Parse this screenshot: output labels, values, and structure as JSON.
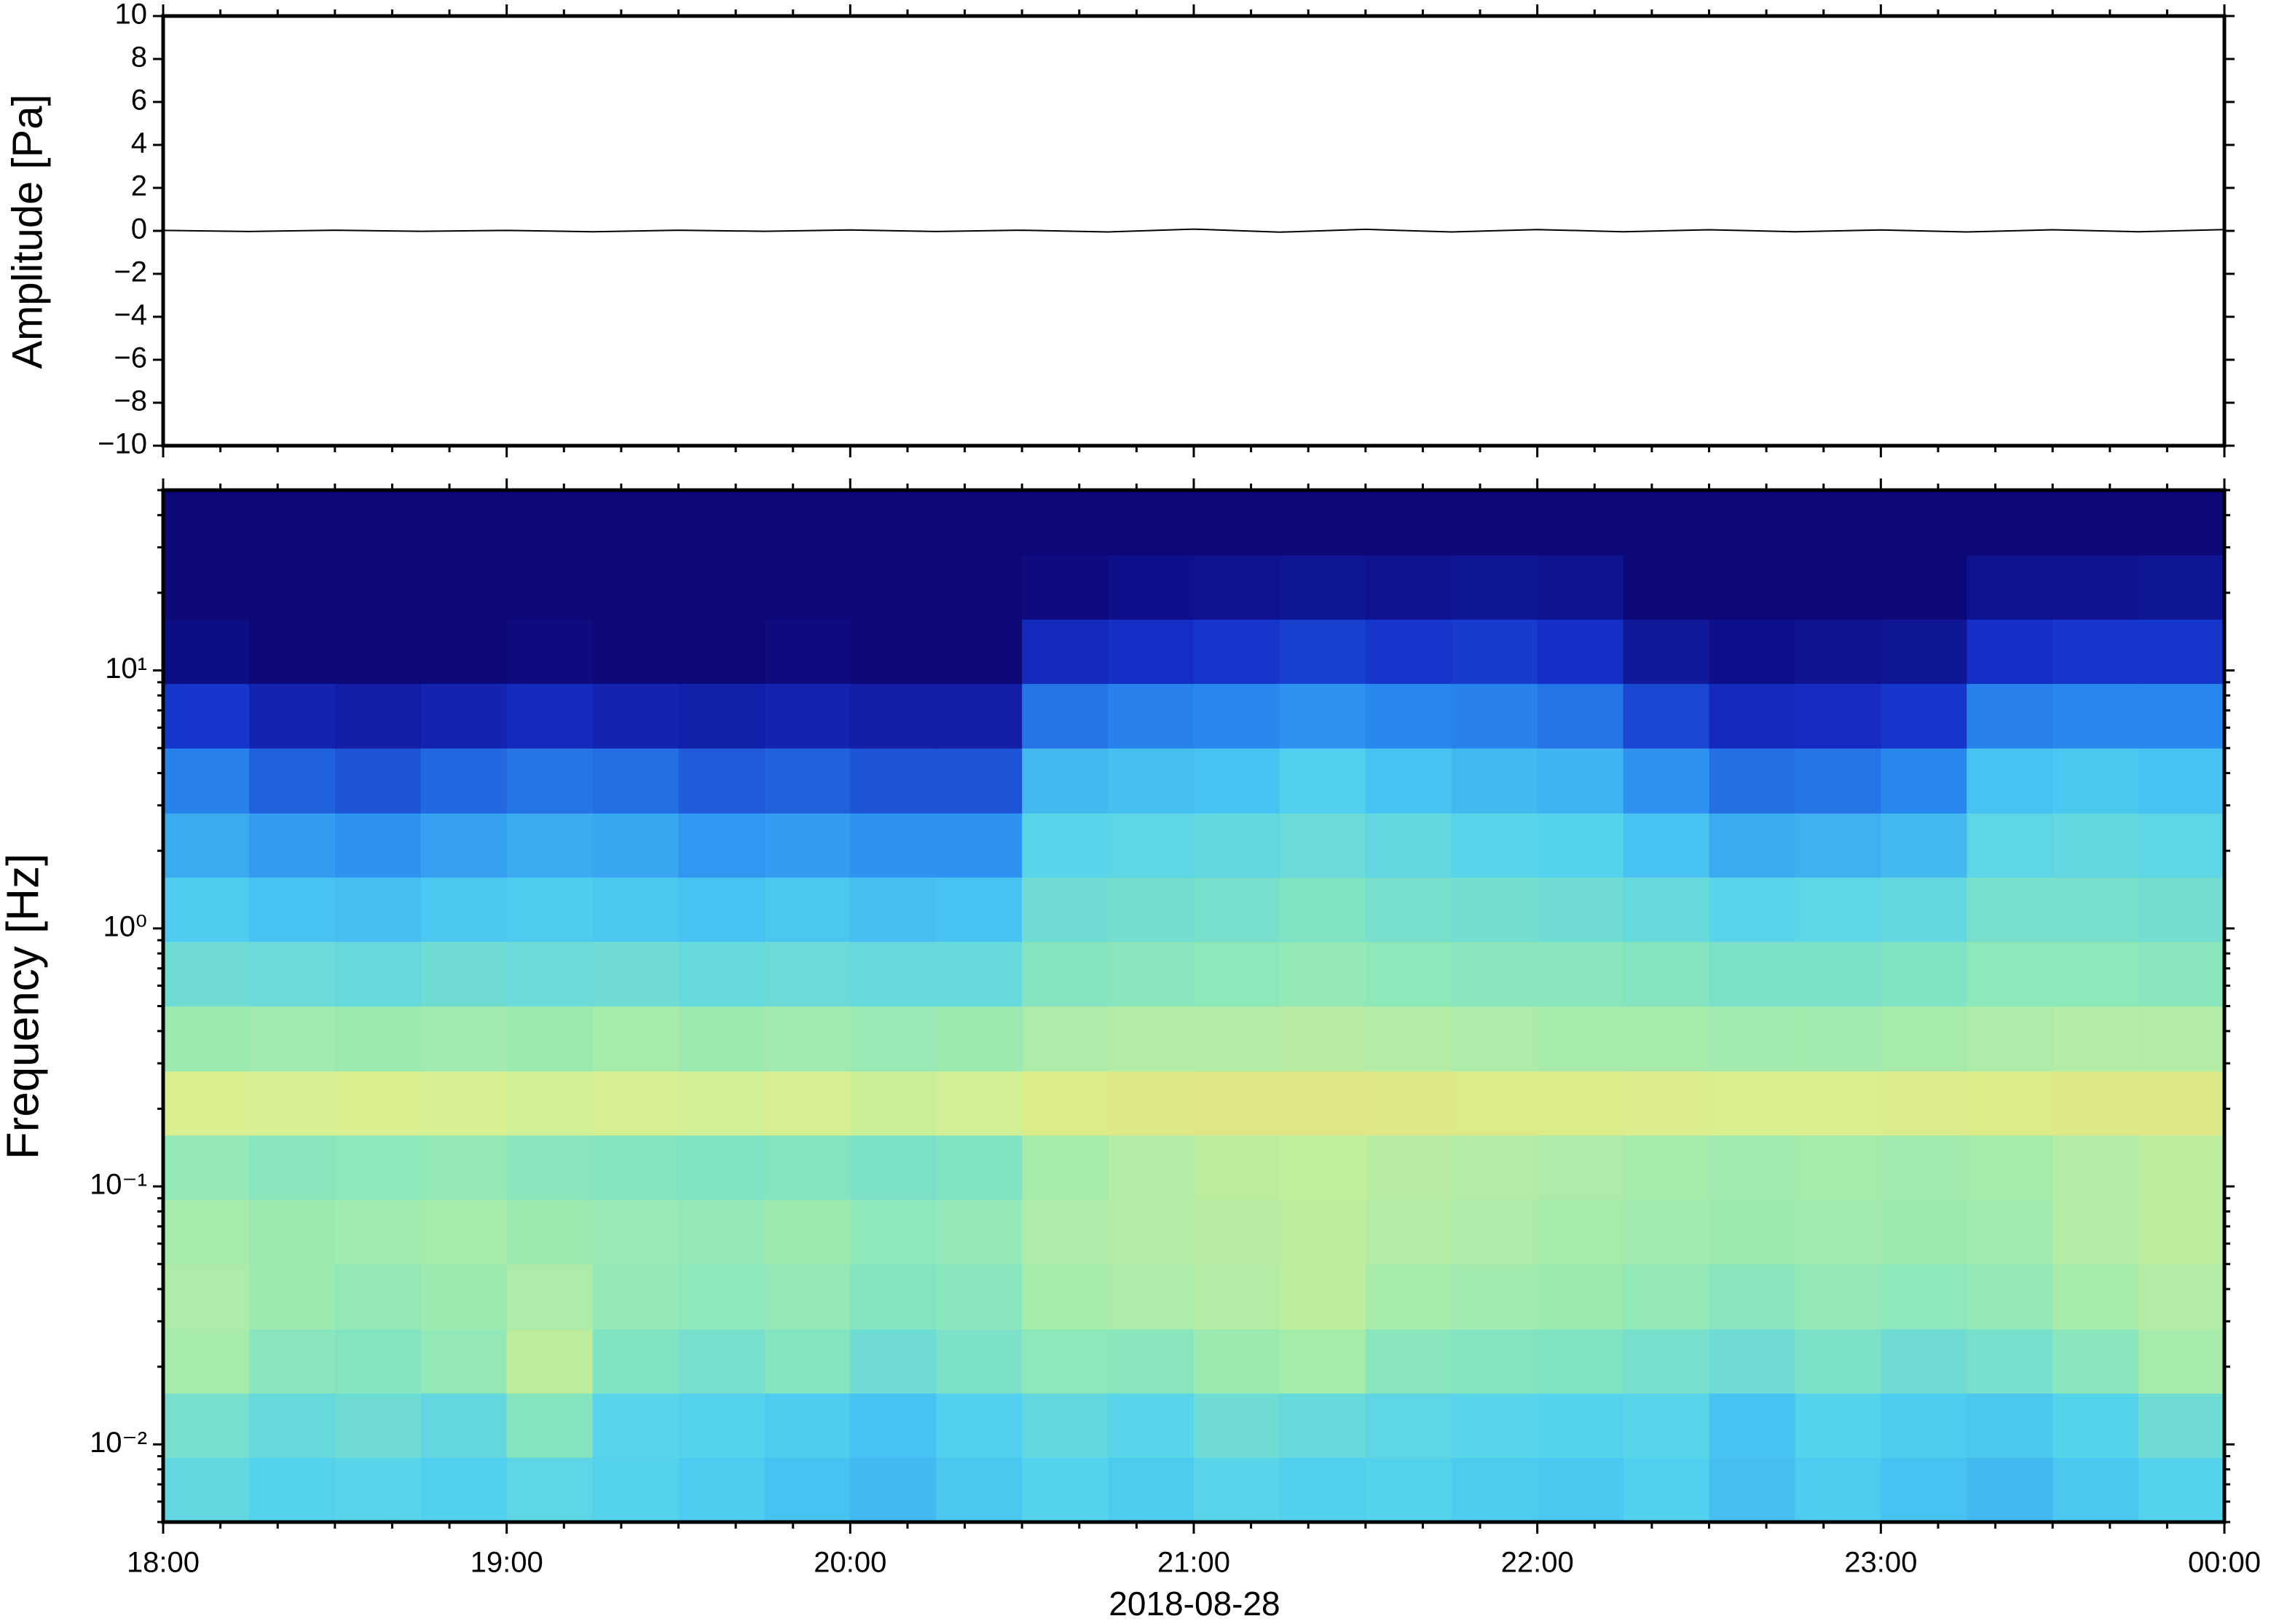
{
  "chart_data": [
    {
      "type": "line",
      "ylabel": "Amplitude [Pa]",
      "color": "#000000",
      "xlim": [
        18,
        24
      ],
      "xticks": [
        18,
        19,
        20,
        21,
        22,
        23,
        24
      ],
      "ylim": [
        -10,
        10
      ],
      "yticks": [
        {
          "value": -10,
          "label": "−10"
        },
        {
          "value": -8,
          "label": "−8"
        },
        {
          "value": -6,
          "label": "−6"
        },
        {
          "value": -4,
          "label": "−4"
        },
        {
          "value": -2,
          "label": "−2"
        },
        0,
        2,
        4,
        6,
        8,
        10
      ],
      "x": [
        18,
        18.25,
        18.5,
        18.75,
        19,
        19.25,
        19.5,
        19.75,
        20,
        20.25,
        20.5,
        20.75,
        21,
        21.25,
        21.5,
        21.75,
        22,
        22.25,
        22.5,
        22.75,
        23,
        23.25,
        23.5,
        23.75,
        24
      ],
      "values": [
        0.02,
        -0.03,
        0.03,
        -0.02,
        0.02,
        -0.04,
        0.03,
        -0.02,
        0.04,
        -0.03,
        0.03,
        -0.05,
        0.08,
        -0.06,
        0.07,
        -0.05,
        0.06,
        -0.04,
        0.05,
        -0.04,
        0.04,
        -0.05,
        0.05,
        -0.04,
        0.06
      ]
    },
    {
      "type": "heatmap",
      "ylabel": "Frequency [Hz]",
      "xlabel": "2018-08-28",
      "ylog": true,
      "xlim": [
        18,
        24
      ],
      "xticks": [
        {
          "value": 18,
          "label": "18:00"
        },
        {
          "value": 19,
          "label": "19:00"
        },
        {
          "value": 20,
          "label": "20:00"
        },
        {
          "value": 21,
          "label": "21:00"
        },
        {
          "value": 22,
          "label": "22:00"
        },
        {
          "value": 23,
          "label": "23:00"
        },
        {
          "value": 24,
          "label": "00:00"
        }
      ],
      "ylim": [
        0.005,
        50
      ],
      "yticks": [
        {
          "value": 0.01,
          "label": "10⁻²"
        },
        {
          "value": 0.1,
          "label": "10⁻¹"
        },
        {
          "value": 1,
          "label": "10⁰"
        },
        {
          "value": 10,
          "label": "10¹"
        }
      ],
      "colormap": [
        "#0c0878",
        "#1530c8",
        "#2a8cf0",
        "#50d0f0",
        "#8ee8b8",
        "#d8f090",
        "#f2d070",
        "#f08c40"
      ],
      "clim": [
        0,
        1
      ],
      "x_edges": [
        18,
        18.25,
        18.5,
        18.75,
        19,
        19.25,
        19.5,
        19.75,
        20,
        20.25,
        20.5,
        20.75,
        21,
        21.25,
        21.5,
        21.75,
        22,
        22.25,
        22.5,
        22.75,
        23,
        23.25,
        23.5,
        23.75,
        24
      ],
      "y_edges": [
        0.005,
        0.0089,
        0.0158,
        0.028,
        0.05,
        0.089,
        0.158,
        0.28,
        0.5,
        0.89,
        1.58,
        2.8,
        5,
        8.9,
        15.8,
        28,
        50
      ],
      "values": [
        [
          0.47,
          0.44,
          0.45,
          0.43,
          0.46,
          0.44,
          0.42,
          0.4,
          0.38,
          0.41,
          0.44,
          0.42,
          0.45,
          0.43,
          0.44,
          0.42,
          0.41,
          0.43,
          0.39,
          0.42,
          0.4,
          0.38,
          0.41,
          0.44
        ],
        [
          0.52,
          0.48,
          0.5,
          0.47,
          0.55,
          0.45,
          0.44,
          0.42,
          0.4,
          0.43,
          0.47,
          0.45,
          0.5,
          0.48,
          0.46,
          0.45,
          0.44,
          0.45,
          0.4,
          0.44,
          0.42,
          0.41,
          0.44,
          0.5
        ],
        [
          0.62,
          0.56,
          0.55,
          0.58,
          0.66,
          0.54,
          0.52,
          0.55,
          0.5,
          0.53,
          0.57,
          0.56,
          0.6,
          0.62,
          0.56,
          0.55,
          0.54,
          0.52,
          0.5,
          0.53,
          0.5,
          0.52,
          0.56,
          0.62
        ],
        [
          0.63,
          0.6,
          0.58,
          0.6,
          0.63,
          0.58,
          0.57,
          0.58,
          0.55,
          0.56,
          0.62,
          0.63,
          0.64,
          0.66,
          0.62,
          0.61,
          0.6,
          0.58,
          0.56,
          0.58,
          0.57,
          0.58,
          0.62,
          0.64
        ],
        [
          0.62,
          0.6,
          0.61,
          0.62,
          0.6,
          0.59,
          0.58,
          0.6,
          0.57,
          0.58,
          0.63,
          0.64,
          0.65,
          0.66,
          0.64,
          0.63,
          0.62,
          0.61,
          0.6,
          0.61,
          0.6,
          0.61,
          0.64,
          0.66
        ],
        [
          0.58,
          0.56,
          0.57,
          0.58,
          0.56,
          0.55,
          0.54,
          0.55,
          0.53,
          0.54,
          0.62,
          0.64,
          0.66,
          0.67,
          0.65,
          0.64,
          0.63,
          0.62,
          0.61,
          0.62,
          0.61,
          0.62,
          0.64,
          0.66
        ],
        [
          0.72,
          0.71,
          0.72,
          0.71,
          0.7,
          0.71,
          0.7,
          0.71,
          0.69,
          0.7,
          0.74,
          0.75,
          0.76,
          0.76,
          0.75,
          0.74,
          0.74,
          0.73,
          0.72,
          0.72,
          0.73,
          0.74,
          0.75,
          0.75
        ],
        [
          0.6,
          0.61,
          0.6,
          0.61,
          0.6,
          0.62,
          0.6,
          0.61,
          0.59,
          0.6,
          0.63,
          0.64,
          0.64,
          0.65,
          0.64,
          0.63,
          0.62,
          0.62,
          0.61,
          0.61,
          0.62,
          0.63,
          0.64,
          0.64
        ],
        [
          0.5,
          0.49,
          0.48,
          0.5,
          0.49,
          0.5,
          0.48,
          0.49,
          0.48,
          0.48,
          0.55,
          0.56,
          0.57,
          0.58,
          0.57,
          0.56,
          0.56,
          0.55,
          0.53,
          0.53,
          0.54,
          0.57,
          0.57,
          0.56
        ],
        [
          0.42,
          0.4,
          0.39,
          0.41,
          0.42,
          0.41,
          0.4,
          0.41,
          0.39,
          0.4,
          0.5,
          0.51,
          0.52,
          0.54,
          0.52,
          0.51,
          0.5,
          0.48,
          0.45,
          0.46,
          0.47,
          0.52,
          0.52,
          0.51
        ],
        [
          0.35,
          0.32,
          0.3,
          0.33,
          0.35,
          0.34,
          0.31,
          0.32,
          0.3,
          0.3,
          0.45,
          0.46,
          0.47,
          0.49,
          0.47,
          0.45,
          0.44,
          0.4,
          0.35,
          0.36,
          0.38,
          0.46,
          0.47,
          0.46
        ],
        [
          0.27,
          0.22,
          0.2,
          0.23,
          0.25,
          0.24,
          0.21,
          0.22,
          0.2,
          0.2,
          0.38,
          0.39,
          0.4,
          0.43,
          0.4,
          0.38,
          0.37,
          0.3,
          0.24,
          0.25,
          0.28,
          0.4,
          0.41,
          0.4
        ],
        [
          0.15,
          0.1,
          0.08,
          0.1,
          0.12,
          0.1,
          0.09,
          0.1,
          0.08,
          0.08,
          0.25,
          0.27,
          0.28,
          0.3,
          0.28,
          0.27,
          0.25,
          0.18,
          0.12,
          0.13,
          0.15,
          0.27,
          0.28,
          0.28
        ],
        [
          0.02,
          0,
          0,
          0,
          0.01,
          0,
          0,
          0.01,
          0,
          0,
          0.12,
          0.14,
          0.15,
          0.17,
          0.15,
          0.16,
          0.14,
          0.06,
          0.03,
          0.04,
          0.05,
          0.14,
          0.15,
          0.15
        ],
        [
          0,
          0,
          0,
          0,
          0,
          0,
          0,
          0,
          0,
          0,
          0.01,
          0.03,
          0.04,
          0.05,
          0.04,
          0.05,
          0.04,
          0,
          0,
          0,
          0,
          0.04,
          0.04,
          0.05
        ],
        [
          0,
          0,
          0,
          0,
          0,
          0,
          0,
          0,
          0,
          0,
          0,
          0,
          0,
          0,
          0,
          0,
          0,
          0,
          0,
          0,
          0,
          0,
          0,
          0
        ]
      ]
    }
  ]
}
